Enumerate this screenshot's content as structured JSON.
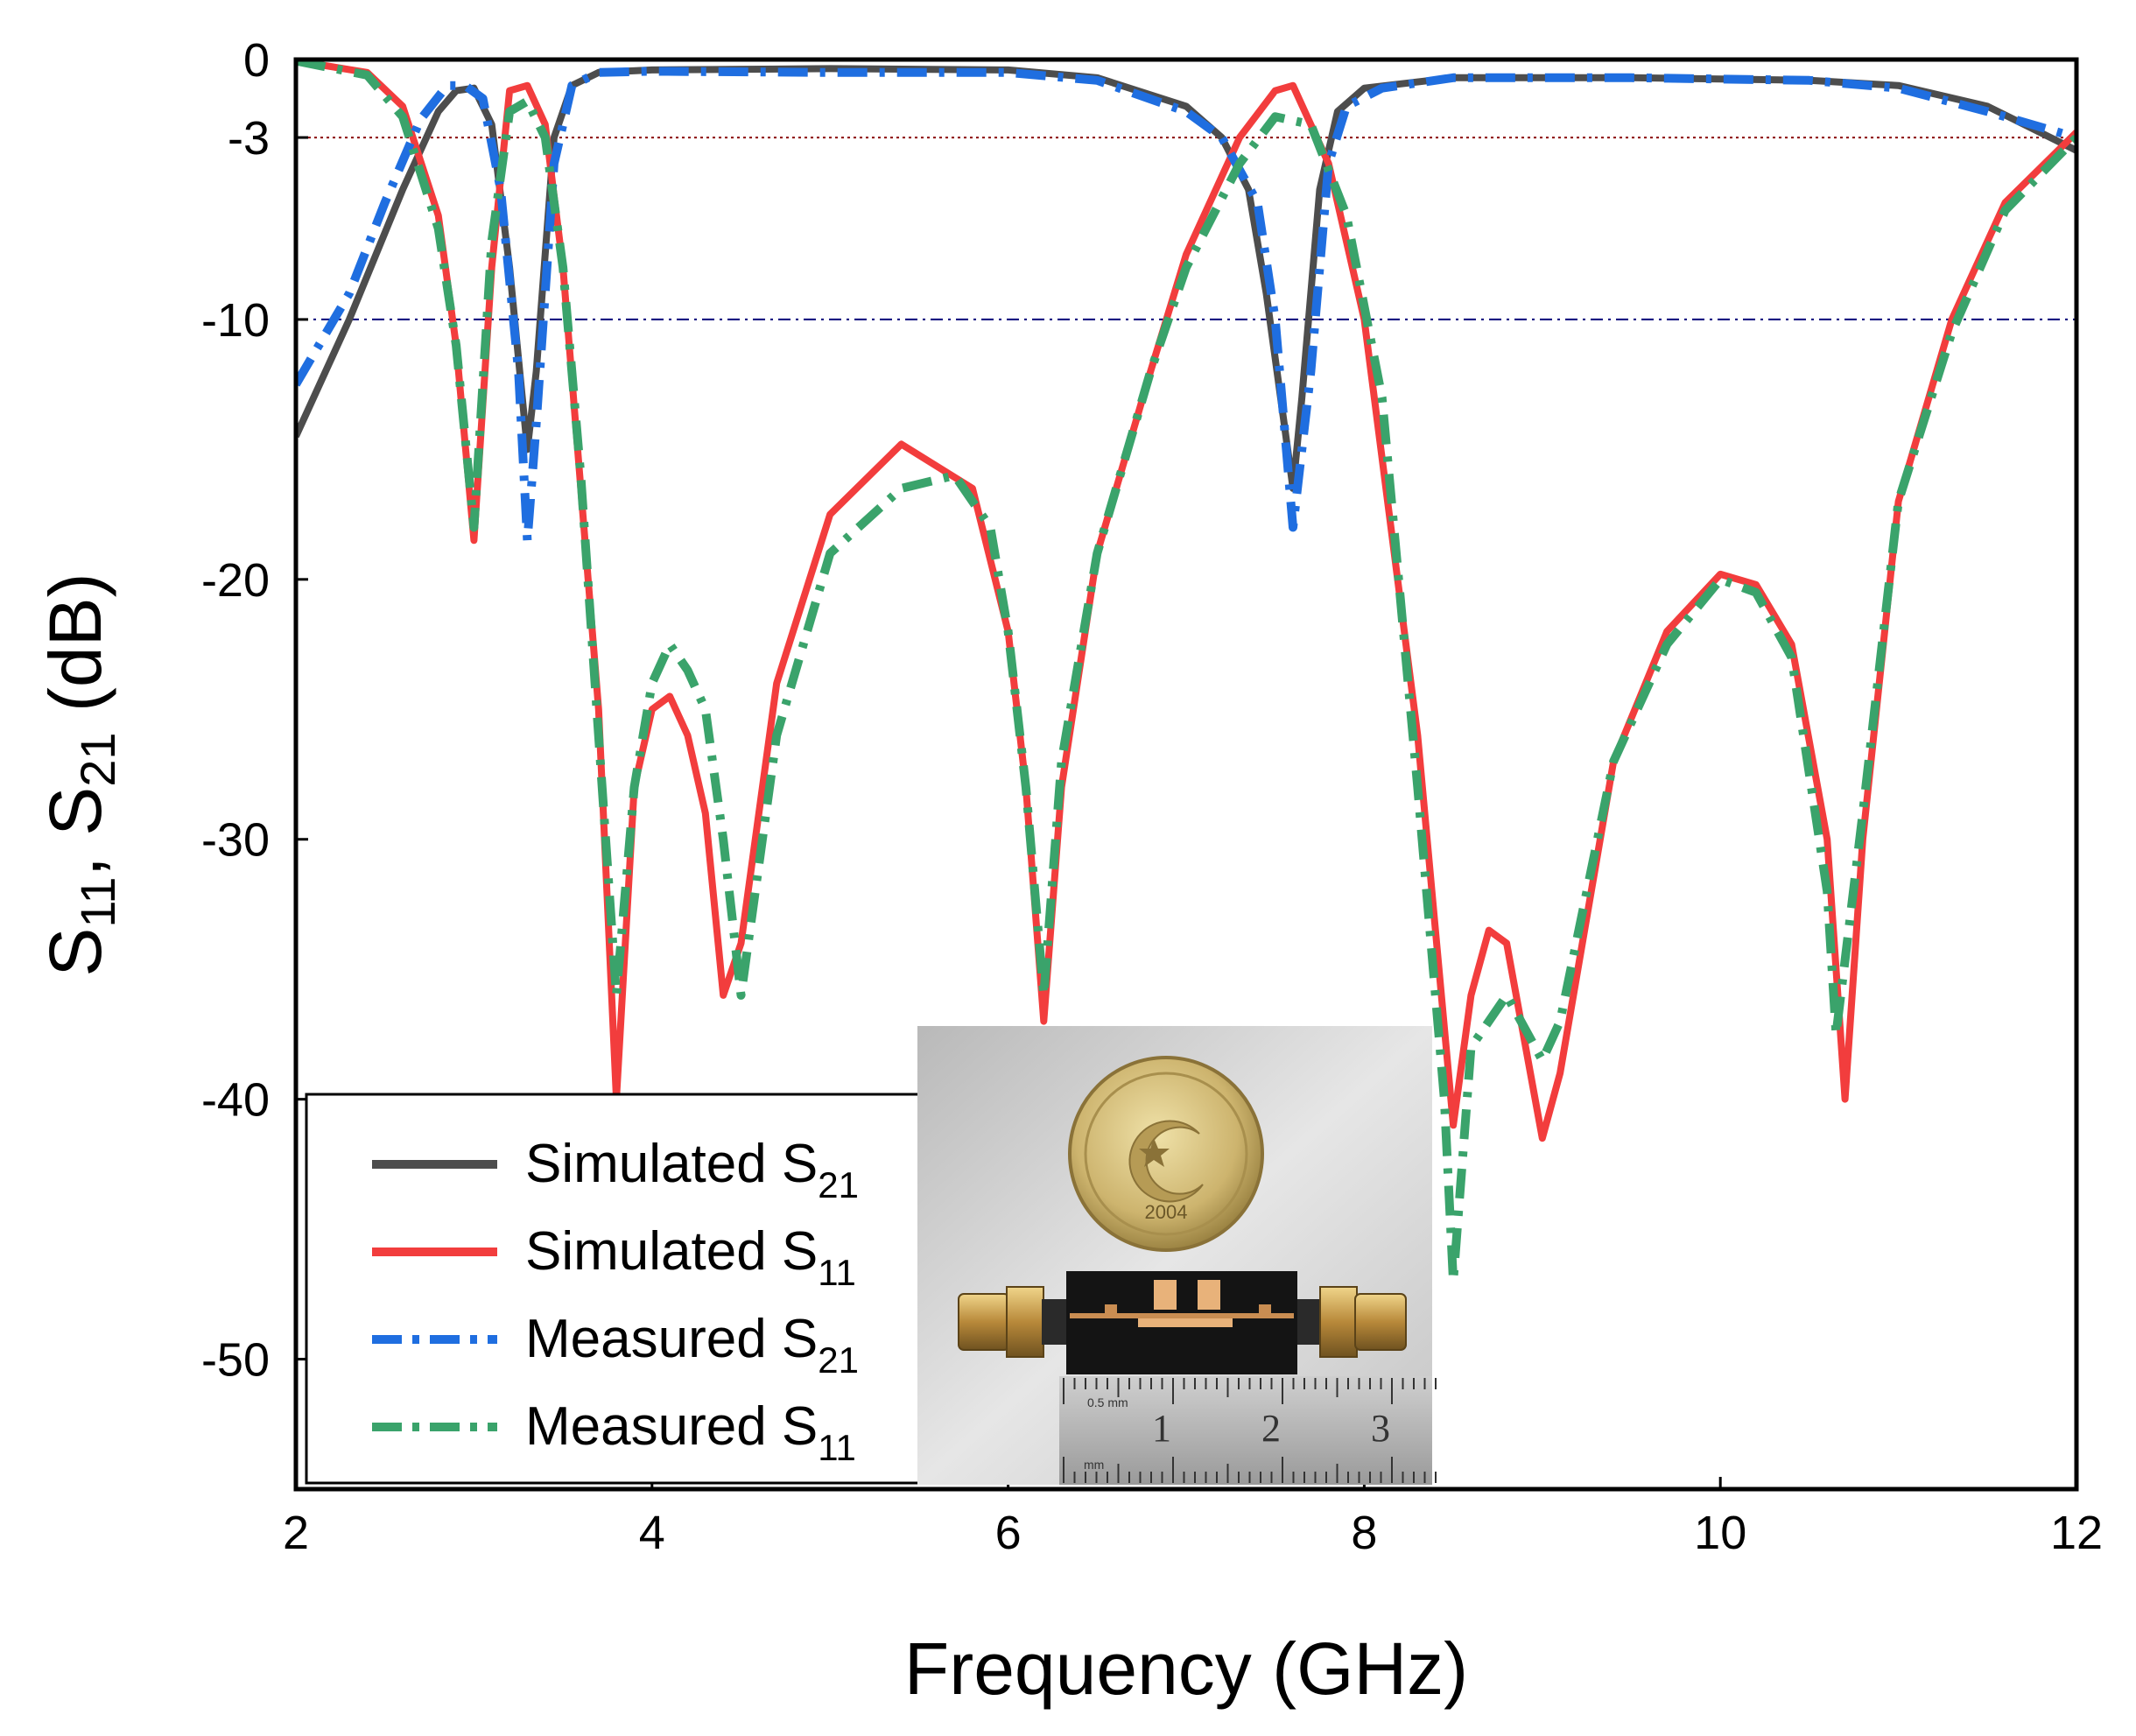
{
  "chart_data": {
    "type": "line",
    "xlabel": "Frequency (GHz)",
    "ylabel": {
      "main": "S",
      "sub1": "11",
      "sep": ", S",
      "sub2": "21",
      "tail": " (dB)"
    },
    "xlim": [
      2,
      12
    ],
    "ylim": [
      -55,
      0
    ],
    "x_ticks": [
      2,
      4,
      6,
      8,
      10,
      12
    ],
    "y_ticks": [
      0,
      -3,
      -10,
      -20,
      -30,
      -40,
      -50
    ],
    "reference_lines": [
      {
        "y": -3,
        "color": "#8b0000",
        "style": "dotted"
      },
      {
        "y": -10,
        "color": "#00007a",
        "style": "dashdot"
      }
    ],
    "legend_position": "bottom-left",
    "series": [
      {
        "name": "Simulated S21",
        "label": "Simulated S",
        "sub": "21",
        "color": "#4d4d4d",
        "style": "solid",
        "points": [
          [
            2,
            -14.5
          ],
          [
            2.3,
            -10
          ],
          [
            2.6,
            -5
          ],
          [
            2.8,
            -2
          ],
          [
            2.9,
            -1.2
          ],
          [
            3.0,
            -1.1
          ],
          [
            3.1,
            -2.5
          ],
          [
            3.2,
            -8
          ],
          [
            3.3,
            -15
          ],
          [
            3.35,
            -12
          ],
          [
            3.45,
            -3
          ],
          [
            3.55,
            -1
          ],
          [
            3.7,
            -0.5
          ],
          [
            4.0,
            -0.4
          ],
          [
            5.0,
            -0.35
          ],
          [
            6.0,
            -0.4
          ],
          [
            6.5,
            -0.7
          ],
          [
            7.0,
            -1.8
          ],
          [
            7.2,
            -3
          ],
          [
            7.35,
            -5
          ],
          [
            7.45,
            -9
          ],
          [
            7.55,
            -14
          ],
          [
            7.6,
            -16.5
          ],
          [
            7.65,
            -13
          ],
          [
            7.75,
            -5
          ],
          [
            7.85,
            -2
          ],
          [
            8.0,
            -1.1
          ],
          [
            8.5,
            -0.7
          ],
          [
            9.5,
            -0.7
          ],
          [
            10.5,
            -0.8
          ],
          [
            11.0,
            -1
          ],
          [
            11.5,
            -1.8
          ],
          [
            12,
            -3.5
          ]
        ]
      },
      {
        "name": "Simulated S11",
        "label": "Simulated S",
        "sub": "11",
        "color": "#f23d3d",
        "style": "solid",
        "points": [
          [
            2,
            -0.05
          ],
          [
            2.4,
            -0.5
          ],
          [
            2.6,
            -1.8
          ],
          [
            2.8,
            -6
          ],
          [
            2.9,
            -11
          ],
          [
            3.0,
            -18.5
          ],
          [
            3.1,
            -8
          ],
          [
            3.2,
            -1.2
          ],
          [
            3.3,
            -1.0
          ],
          [
            3.4,
            -2.5
          ],
          [
            3.5,
            -8
          ],
          [
            3.7,
            -25
          ],
          [
            3.8,
            -40
          ],
          [
            3.9,
            -28
          ],
          [
            4.0,
            -25
          ],
          [
            4.1,
            -24.5
          ],
          [
            4.2,
            -26
          ],
          [
            4.3,
            -29
          ],
          [
            4.4,
            -36
          ],
          [
            4.5,
            -34
          ],
          [
            4.7,
            -24
          ],
          [
            5.0,
            -17.5
          ],
          [
            5.4,
            -14.8
          ],
          [
            5.8,
            -16.5
          ],
          [
            6.0,
            -22
          ],
          [
            6.1,
            -28
          ],
          [
            6.2,
            -37
          ],
          [
            6.3,
            -28
          ],
          [
            6.5,
            -19
          ],
          [
            6.8,
            -12
          ],
          [
            7.0,
            -7.5
          ],
          [
            7.3,
            -3
          ],
          [
            7.5,
            -1.2
          ],
          [
            7.6,
            -1.0
          ],
          [
            7.8,
            -4
          ],
          [
            8.0,
            -10
          ],
          [
            8.3,
            -26
          ],
          [
            8.5,
            -41
          ],
          [
            8.6,
            -36
          ],
          [
            8.7,
            -33.5
          ],
          [
            8.8,
            -34
          ],
          [
            9.0,
            -41.5
          ],
          [
            9.1,
            -39
          ],
          [
            9.4,
            -27
          ],
          [
            9.7,
            -22
          ],
          [
            10.0,
            -19.8
          ],
          [
            10.2,
            -20.2
          ],
          [
            10.4,
            -22.5
          ],
          [
            10.6,
            -30
          ],
          [
            10.7,
            -40
          ],
          [
            10.8,
            -30
          ],
          [
            11.0,
            -17
          ],
          [
            11.3,
            -10
          ],
          [
            11.6,
            -5.5
          ],
          [
            12,
            -2.8
          ]
        ]
      },
      {
        "name": "Measured S21",
        "label": "Measured S",
        "sub": "21",
        "color": "#1f6ee0",
        "style": "dashdot",
        "points": [
          [
            2,
            -12.5
          ],
          [
            2.3,
            -9
          ],
          [
            2.5,
            -5.5
          ],
          [
            2.7,
            -2.3
          ],
          [
            2.85,
            -1.0
          ],
          [
            2.95,
            -1.0
          ],
          [
            3.05,
            -1.5
          ],
          [
            3.15,
            -5
          ],
          [
            3.25,
            -12
          ],
          [
            3.3,
            -18.5
          ],
          [
            3.35,
            -14
          ],
          [
            3.45,
            -4
          ],
          [
            3.55,
            -1.0
          ],
          [
            3.7,
            -0.5
          ],
          [
            4.0,
            -0.45
          ],
          [
            5.0,
            -0.5
          ],
          [
            6.0,
            -0.5
          ],
          [
            6.5,
            -0.8
          ],
          [
            7.0,
            -2
          ],
          [
            7.2,
            -3
          ],
          [
            7.4,
            -5.5
          ],
          [
            7.5,
            -10
          ],
          [
            7.6,
            -18
          ],
          [
            7.7,
            -12
          ],
          [
            7.8,
            -4
          ],
          [
            7.9,
            -1.8
          ],
          [
            8.1,
            -1.1
          ],
          [
            8.5,
            -0.7
          ],
          [
            9.5,
            -0.7
          ],
          [
            10.5,
            -0.8
          ],
          [
            11.0,
            -1.1
          ],
          [
            11.5,
            -2
          ],
          [
            12,
            -3
          ]
        ]
      },
      {
        "name": "Measured S11",
        "label": "Measured S",
        "sub": "11",
        "color": "#3aa36b",
        "style": "dashdot",
        "points": [
          [
            2,
            -0.05
          ],
          [
            2.4,
            -0.6
          ],
          [
            2.6,
            -2.2
          ],
          [
            2.8,
            -6.5
          ],
          [
            2.9,
            -11
          ],
          [
            3.0,
            -18
          ],
          [
            3.1,
            -7
          ],
          [
            3.2,
            -2
          ],
          [
            3.3,
            -1.6
          ],
          [
            3.4,
            -3
          ],
          [
            3.5,
            -8
          ],
          [
            3.6,
            -16
          ],
          [
            3.8,
            -36
          ],
          [
            3.9,
            -28
          ],
          [
            4.0,
            -24
          ],
          [
            4.1,
            -22.5
          ],
          [
            4.2,
            -23.5
          ],
          [
            4.3,
            -25
          ],
          [
            4.4,
            -30
          ],
          [
            4.5,
            -36
          ],
          [
            4.7,
            -26
          ],
          [
            5.0,
            -19
          ],
          [
            5.4,
            -16.5
          ],
          [
            5.7,
            -16
          ],
          [
            5.9,
            -18
          ],
          [
            6.0,
            -22
          ],
          [
            6.1,
            -28
          ],
          [
            6.2,
            -36
          ],
          [
            6.3,
            -27
          ],
          [
            6.5,
            -19
          ],
          [
            6.8,
            -12
          ],
          [
            7.0,
            -8
          ],
          [
            7.3,
            -4
          ],
          [
            7.5,
            -2.2
          ],
          [
            7.7,
            -2.5
          ],
          [
            7.9,
            -6
          ],
          [
            8.1,
            -13
          ],
          [
            8.3,
            -28
          ],
          [
            8.45,
            -40
          ],
          [
            8.5,
            -47
          ],
          [
            8.6,
            -38
          ],
          [
            8.8,
            -36
          ],
          [
            9.0,
            -38.5
          ],
          [
            9.1,
            -37
          ],
          [
            9.4,
            -27
          ],
          [
            9.7,
            -22.5
          ],
          [
            10.0,
            -20
          ],
          [
            10.2,
            -20.5
          ],
          [
            10.4,
            -23
          ],
          [
            10.6,
            -32
          ],
          [
            10.65,
            -37.5
          ],
          [
            10.8,
            -29
          ],
          [
            11.0,
            -17
          ],
          [
            11.3,
            -10.5
          ],
          [
            11.6,
            -5.8
          ],
          [
            12,
            -3
          ]
        ]
      }
    ]
  },
  "inset_photo": {
    "description_icon": "filter-prototype-photo-icon",
    "coin_text": "2004",
    "ruler_unit": "0.5 mm",
    "ruler_unit_2": "mm",
    "ruler_numbers": [
      "1",
      "2",
      "3"
    ]
  }
}
